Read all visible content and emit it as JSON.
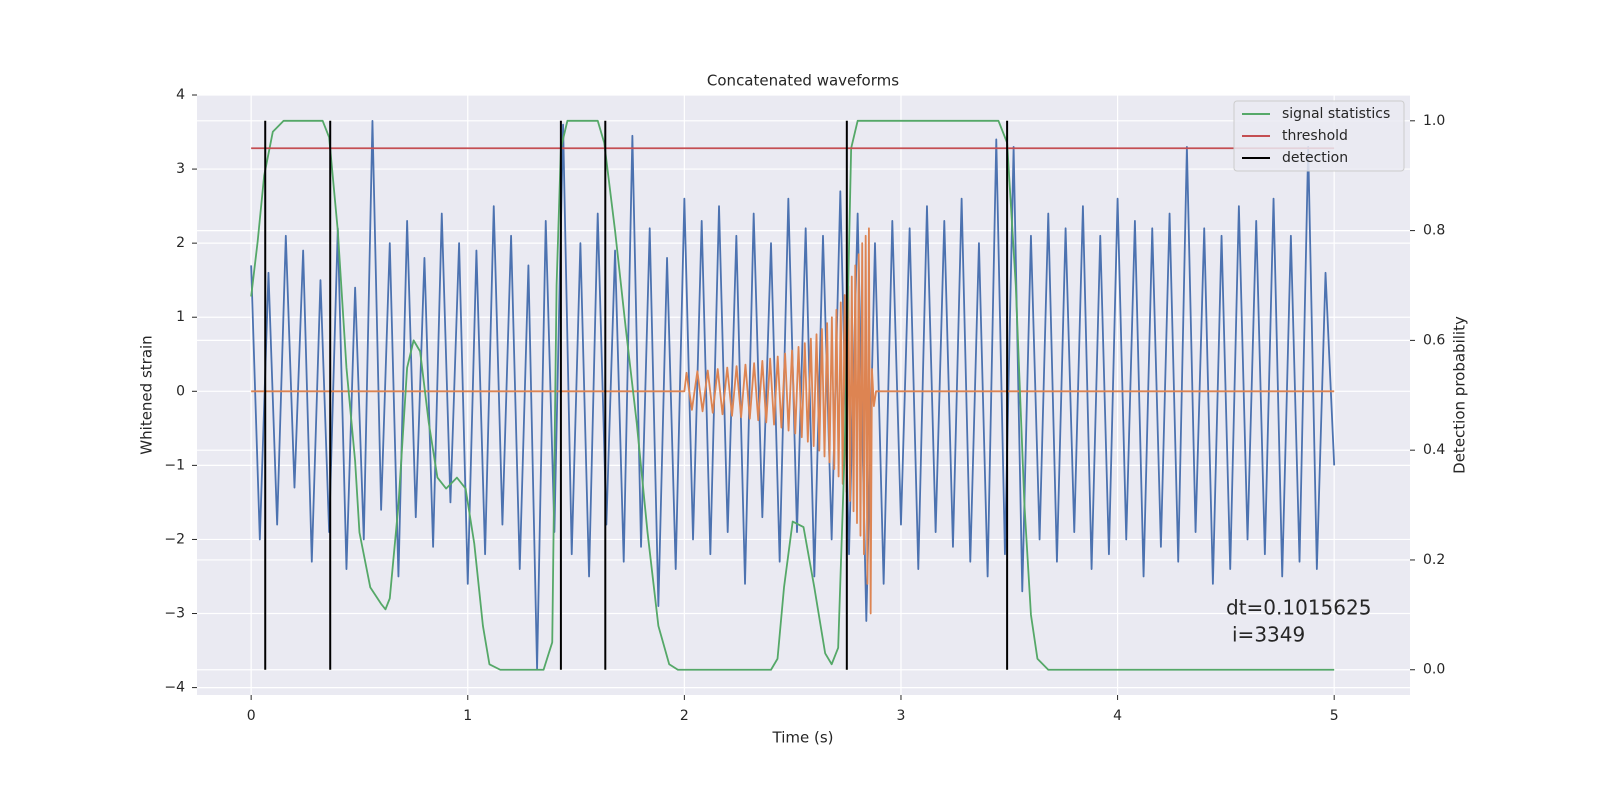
{
  "chart_data": {
    "type": "line",
    "title": "Concatenated waveforms",
    "xlabel": "Time (s)",
    "ylabel": "Whitened strain",
    "y2label": "Detection probability",
    "xlim": [
      -0.25,
      5.35
    ],
    "ylim": [
      -4.1,
      4.0
    ],
    "y2lim": [
      -0.046,
      1.047
    ],
    "xticks": [
      0,
      1,
      2,
      3,
      4,
      5
    ],
    "yticks": [
      {
        "value": -4,
        "label": "−4"
      },
      {
        "value": -3,
        "label": "−3"
      },
      {
        "value": -2,
        "label": "−2"
      },
      {
        "value": -1,
        "label": "−1"
      },
      0,
      1,
      2,
      3,
      4
    ],
    "y2ticks": [
      {
        "value": 0,
        "label": "0.0"
      },
      {
        "value": 0.2,
        "label": "0.2"
      },
      {
        "value": 0.4,
        "label": "0.4"
      },
      {
        "value": 0.6,
        "label": "0.6"
      },
      {
        "value": 0.8,
        "label": "0.8"
      },
      {
        "value": 1.0,
        "label": "1.0"
      }
    ],
    "grid": true,
    "legend": "upper right",
    "annotations": [
      "dt=0.1015625",
      "i=3349"
    ],
    "series": [
      {
        "color": "#4c72b0",
        "x": [
          0,
          0.04,
          0.08,
          0.12,
          0.16,
          0.2,
          0.24,
          0.28,
          0.32,
          0.36,
          0.4,
          0.44,
          0.48,
          0.52,
          0.56,
          0.6,
          0.64,
          0.68,
          0.72,
          0.76,
          0.8,
          0.84,
          0.88,
          0.92,
          0.96,
          1,
          1.04,
          1.08,
          1.12,
          1.16,
          1.2,
          1.24,
          1.28,
          1.32,
          1.36,
          1.4,
          1.44,
          1.48,
          1.52,
          1.56,
          1.6,
          1.64,
          1.68,
          1.72,
          1.76,
          1.8,
          1.84,
          1.88,
          1.92,
          1.96,
          2,
          2.04,
          2.08,
          2.12,
          2.16,
          2.2,
          2.24,
          2.28,
          2.32,
          2.36,
          2.4,
          2.44,
          2.48,
          2.52,
          2.56,
          2.6,
          2.64,
          2.68,
          2.72,
          2.76,
          2.8,
          2.84,
          2.88,
          2.92,
          2.96,
          3,
          3.04,
          3.08,
          3.12,
          3.16,
          3.2,
          3.24,
          3.28,
          3.32,
          3.36,
          3.4,
          3.44,
          3.48,
          3.52,
          3.56,
          3.6,
          3.64,
          3.68,
          3.72,
          3.76,
          3.8,
          3.84,
          3.88,
          3.92,
          3.96,
          4,
          4.04,
          4.08,
          4.12,
          4.16,
          4.2,
          4.24,
          4.28,
          4.32,
          4.36,
          4.4,
          4.44,
          4.48,
          4.52,
          4.56,
          4.6,
          4.64,
          4.68,
          4.72,
          4.76,
          4.8,
          4.84,
          4.88,
          4.92,
          4.96,
          5
        ],
        "values": [
          1.7,
          -2.0,
          1.6,
          -1.8,
          2.1,
          -1.3,
          1.9,
          -2.3,
          1.5,
          -1.9,
          2.2,
          -2.4,
          1.4,
          -2.0,
          3.65,
          -1.6,
          2.0,
          -2.5,
          2.3,
          -1.7,
          1.8,
          -2.1,
          2.4,
          -1.5,
          2.0,
          -2.6,
          1.9,
          -2.2,
          2.5,
          -1.8,
          2.1,
          -2.4,
          1.7,
          -3.75,
          2.3,
          -1.9,
          3.6,
          -2.2,
          2.0,
          -2.5,
          2.4,
          -1.8,
          1.9,
          -2.3,
          3.45,
          -2.1,
          2.2,
          -2.9,
          1.8,
          -2.4,
          2.6,
          -2.0,
          2.3,
          -2.2,
          2.5,
          -1.9,
          2.1,
          -2.6,
          2.4,
          -1.7,
          2.0,
          -2.3,
          2.6,
          -1.9,
          2.2,
          -2.5,
          2.1,
          -2.0,
          2.7,
          -2.2,
          2.4,
          -3.1,
          2.0,
          -2.6,
          2.3,
          -1.8,
          2.2,
          -2.4,
          2.5,
          -1.9,
          2.3,
          -2.1,
          2.6,
          -2.3,
          2.0,
          -2.5,
          3.4,
          -2.2,
          3.3,
          -2.7,
          2.1,
          -2.0,
          2.4,
          -2.3,
          2.2,
          -1.9,
          2.5,
          -2.4,
          2.1,
          -2.2,
          2.6,
          -2.0,
          2.3,
          -2.5,
          2.2,
          -2.1,
          2.4,
          -2.3,
          3.3,
          -1.9,
          2.2,
          -2.6,
          2.1,
          -2.4,
          2.5,
          -2.0,
          2.3,
          -2.2,
          2.6,
          -2.5,
          2.1,
          -2.3,
          3.3,
          -2.4,
          1.6,
          -1.0
        ]
      },
      {
        "color": "#dd8452",
        "x": [
          0,
          2.0,
          2.01,
          2.035,
          2.06,
          2.084,
          2.108,
          2.131,
          2.154,
          2.176,
          2.198,
          2.22,
          2.241,
          2.262,
          2.282,
          2.302,
          2.322,
          2.341,
          2.36,
          2.378,
          2.396,
          2.414,
          2.431,
          2.448,
          2.465,
          2.481,
          2.497,
          2.512,
          2.527,
          2.542,
          2.556,
          2.57,
          2.584,
          2.597,
          2.61,
          2.623,
          2.635,
          2.647,
          2.659,
          2.67,
          2.681,
          2.692,
          2.702,
          2.712,
          2.722,
          2.731,
          2.74,
          2.749,
          2.757,
          2.765,
          2.773,
          2.781,
          2.789,
          2.797,
          2.805,
          2.813,
          2.821,
          2.829,
          2.837,
          2.845,
          2.852,
          2.86,
          2.866,
          2.875,
          2.885,
          5.0
        ],
        "values": [
          0,
          0,
          0.25,
          -0.25,
          0.27,
          -0.27,
          0.28,
          -0.29,
          0.3,
          -0.31,
          0.32,
          -0.33,
          0.34,
          -0.35,
          0.36,
          -0.37,
          0.38,
          -0.39,
          0.41,
          -0.42,
          0.44,
          -0.45,
          0.47,
          -0.49,
          0.51,
          -0.53,
          0.55,
          -0.57,
          0.6,
          -0.62,
          0.65,
          -0.68,
          0.71,
          -0.74,
          0.77,
          -0.8,
          0.84,
          -0.88,
          0.92,
          -0.96,
          1.0,
          -1.05,
          1.1,
          -1.15,
          1.2,
          -1.25,
          1.3,
          -1.36,
          1.42,
          -1.48,
          1.55,
          -1.62,
          1.7,
          -1.78,
          1.85,
          -1.95,
          2.0,
          -2.2,
          2.1,
          -2.6,
          2.2,
          -3.0,
          0.3,
          -0.2,
          0,
          0
        ]
      },
      {
        "name": "signal statistics",
        "color": "#55a868",
        "axis": "y2",
        "x": [
          0,
          0.03,
          0.06,
          0.1,
          0.15,
          0.33,
          0.36,
          0.4,
          0.44,
          0.48,
          0.5,
          0.55,
          0.6,
          0.62,
          0.64,
          0.68,
          0.72,
          0.75,
          0.78,
          0.82,
          0.86,
          0.9,
          0.95,
          0.99,
          1.03,
          1.07,
          1.1,
          1.15,
          1.35,
          1.39,
          1.41,
          1.43,
          1.46,
          1.6,
          1.63,
          1.68,
          1.73,
          1.78,
          1.83,
          1.88,
          1.93,
          1.97,
          2.4,
          2.43,
          2.46,
          2.5,
          2.55,
          2.6,
          2.65,
          2.68,
          2.71,
          2.74,
          2.77,
          2.8,
          3.45,
          3.49,
          3.53,
          3.57,
          3.6,
          3.63,
          3.68,
          5.0
        ],
        "values": [
          0.68,
          0.78,
          0.9,
          0.98,
          1.0,
          1.0,
          0.97,
          0.8,
          0.55,
          0.38,
          0.25,
          0.15,
          0.12,
          0.11,
          0.13,
          0.3,
          0.55,
          0.6,
          0.58,
          0.45,
          0.35,
          0.33,
          0.35,
          0.33,
          0.23,
          0.08,
          0.01,
          0.0,
          0.0,
          0.05,
          0.7,
          0.95,
          1.0,
          1.0,
          0.96,
          0.8,
          0.62,
          0.45,
          0.25,
          0.08,
          0.01,
          0.0,
          0.0,
          0.02,
          0.15,
          0.27,
          0.26,
          0.15,
          0.03,
          0.01,
          0.04,
          0.4,
          0.95,
          1.0,
          1.0,
          0.96,
          0.7,
          0.3,
          0.1,
          0.02,
          0.0,
          0.0
        ]
      },
      {
        "name": "threshold",
        "color": "#c44e52",
        "axis": "y2",
        "x": [
          0,
          5
        ],
        "values": [
          0.95,
          0.95
        ]
      }
    ],
    "vlines": {
      "name": "detection",
      "color": "#000000",
      "axis": "y2",
      "x": [
        0.065,
        0.365,
        1.43,
        1.635,
        2.75,
        3.49
      ],
      "ymin": 0,
      "ymax": 1
    }
  }
}
